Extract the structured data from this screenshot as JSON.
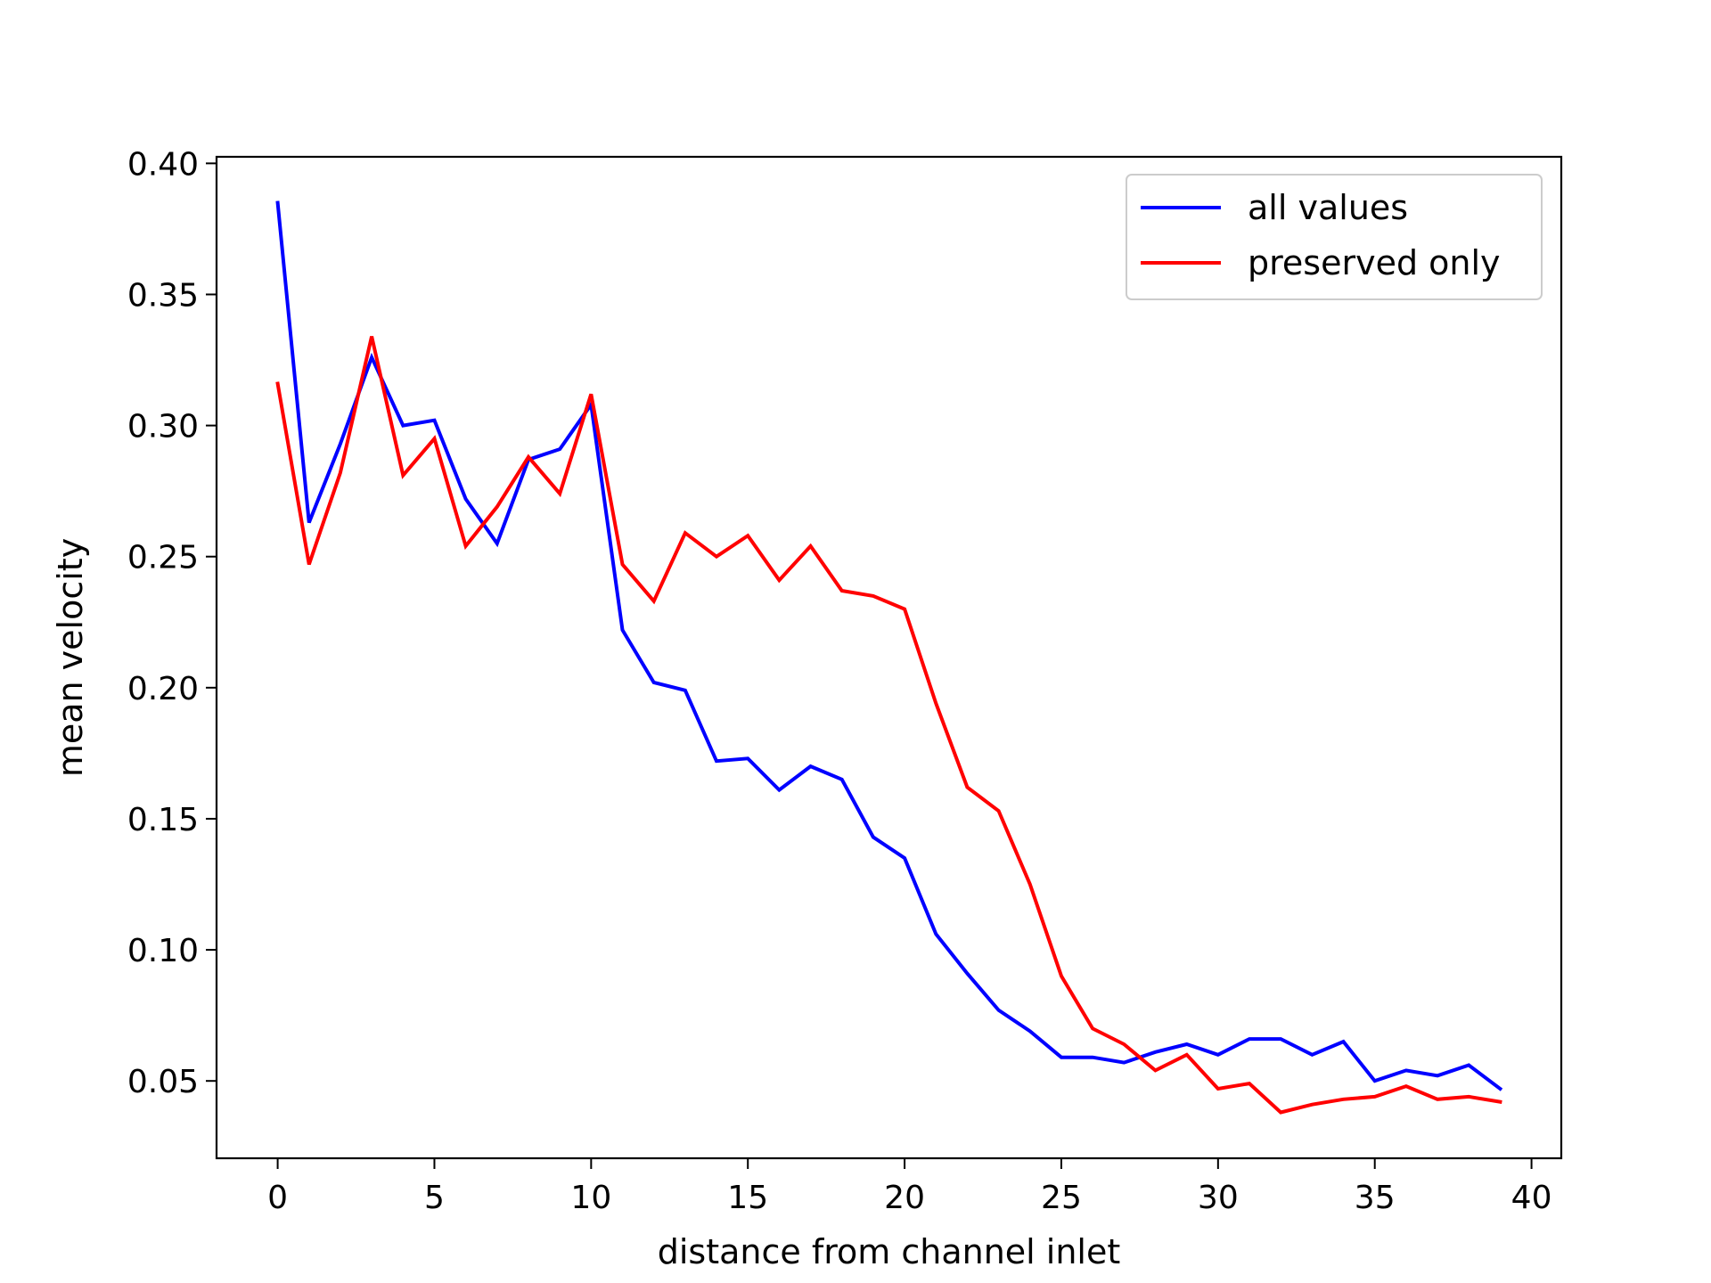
{
  "chart_data": {
    "type": "line",
    "title": "",
    "xlabel": "distance from channel inlet",
    "ylabel": "mean velocity",
    "xlim": [
      -1.95,
      40.95
    ],
    "ylim": [
      0.0205,
      0.4025
    ],
    "xticks": [
      0,
      5,
      10,
      15,
      20,
      25,
      30,
      35,
      40
    ],
    "xtick_labels": [
      "0",
      "5",
      "10",
      "15",
      "20",
      "25",
      "30",
      "35",
      "40"
    ],
    "yticks": [
      0.05,
      0.1,
      0.15,
      0.2,
      0.25,
      0.3,
      0.35,
      0.4
    ],
    "ytick_labels": [
      "0.05",
      "0.10",
      "0.15",
      "0.20",
      "0.25",
      "0.30",
      "0.35",
      "0.40"
    ],
    "grid": false,
    "legend_position": "top-right",
    "x": [
      0,
      1,
      2,
      3,
      4,
      5,
      6,
      7,
      8,
      9,
      10,
      11,
      12,
      13,
      14,
      15,
      16,
      17,
      18,
      19,
      20,
      21,
      22,
      23,
      24,
      25,
      26,
      27,
      28,
      29,
      30,
      31,
      32,
      33,
      34,
      35,
      36,
      37,
      38,
      39
    ],
    "series": [
      {
        "name": "all values",
        "color": "#0000ff",
        "values": [
          0.385,
          0.263,
          0.293,
          0.326,
          0.3,
          0.302,
          0.272,
          0.255,
          0.287,
          0.291,
          0.308,
          0.222,
          0.202,
          0.199,
          0.172,
          0.173,
          0.161,
          0.17,
          0.165,
          0.143,
          0.135,
          0.106,
          0.091,
          0.077,
          0.069,
          0.059,
          0.059,
          0.057,
          0.061,
          0.064,
          0.06,
          0.066,
          0.066,
          0.06,
          0.065,
          0.05,
          0.054,
          0.052,
          0.056,
          0.047
        ]
      },
      {
        "name": "preserved only",
        "color": "#ff0000",
        "values": [
          0.316,
          0.247,
          0.282,
          0.334,
          0.281,
          0.295,
          0.254,
          0.269,
          0.288,
          0.274,
          0.312,
          0.247,
          0.233,
          0.259,
          0.25,
          0.258,
          0.241,
          0.254,
          0.237,
          0.235,
          0.23,
          0.194,
          0.162,
          0.153,
          0.125,
          0.09,
          0.07,
          0.064,
          0.054,
          0.06,
          0.047,
          0.049,
          0.038,
          0.041,
          0.043,
          0.044,
          0.048,
          0.043,
          0.044,
          0.042
        ]
      }
    ]
  }
}
